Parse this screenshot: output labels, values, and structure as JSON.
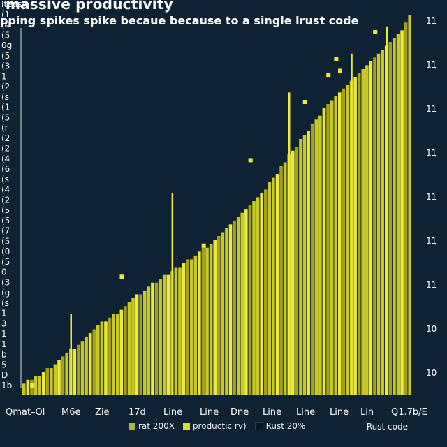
{
  "chart_data": {
    "type": "bar",
    "title": "massive productivity",
    "subtitle": "pping spikes spike becaue because to a single lrust code",
    "x_tick_labels": [
      "Qmat–Ol",
      "M6e",
      "Zie",
      "17d",
      "Line",
      "Line",
      "Dne",
      "Line",
      "Line",
      "Line",
      "Lin",
      "Q1.7b/E"
    ],
    "y_right_labels": [
      "11",
      "11",
      "11",
      "11",
      "11",
      "11",
      "11",
      "10",
      "10"
    ],
    "y_left_labels": [
      "Iteasy",
      "(1",
      "(4",
      "(5",
      "0g",
      "(5",
      "(3",
      "1",
      "(2",
      "(s",
      "(1",
      "(5",
      "(r",
      "(2",
      "(2",
      "(4",
      "(6",
      "(s",
      "(4",
      "(2",
      "(5",
      "(5",
      "(7",
      "(5",
      "(0",
      "(5",
      "0",
      "(3",
      "(g",
      "(s",
      "1",
      "3",
      "1",
      "1",
      "b",
      "5",
      "D",
      "1b"
    ],
    "ylim": [
      0,
      100
    ],
    "values": [
      3,
      4,
      4,
      5,
      5,
      6,
      7,
      7,
      8,
      9,
      10,
      11,
      12,
      12,
      13,
      14,
      15,
      16,
      17,
      18,
      19,
      19,
      20,
      21,
      21,
      22,
      23,
      24,
      25,
      26,
      26,
      27,
      28,
      29,
      29,
      30,
      31,
      31,
      32,
      33,
      33,
      34,
      35,
      35,
      36,
      37,
      38,
      38,
      39,
      40,
      41,
      42,
      43,
      44,
      45,
      46,
      47,
      48,
      49,
      50,
      51,
      52,
      53,
      55,
      56,
      57,
      59,
      60,
      62,
      63,
      64,
      66,
      67,
      68,
      70,
      71,
      72,
      74,
      75,
      76,
      77,
      78,
      79,
      80,
      81,
      82,
      83,
      84,
      85,
      86,
      87,
      88,
      89,
      90,
      91,
      92,
      93,
      94,
      96,
      98
    ],
    "spikes": [
      {
        "index": 12,
        "value": 21
      },
      {
        "index": 38,
        "value": 52
      },
      {
        "index": 68,
        "value": 78
      },
      {
        "index": 84,
        "value": 88
      },
      {
        "index": 93,
        "value": 95
      }
    ],
    "floating_markers": [
      {
        "index": 2,
        "value": 2
      },
      {
        "index": 25,
        "value": 30
      },
      {
        "index": 46,
        "value": 38
      },
      {
        "index": 58,
        "value": 60
      },
      {
        "index": 72,
        "value": 75
      },
      {
        "index": 78,
        "value": 82
      },
      {
        "index": 80,
        "value": 86
      },
      {
        "index": 81,
        "value": 83
      },
      {
        "index": 90,
        "value": 93
      }
    ],
    "legend": [
      {
        "label": "rat 200X",
        "color": "#a8b53a"
      },
      {
        "label": "productic rv)",
        "color": "#d9df2a"
      },
      {
        "label": "Rust 20%",
        "color": "#0a1522"
      }
    ],
    "corner_label": "Rust code",
    "colors": {
      "background": "#0f2233",
      "bar": "#c9c926",
      "bar_highlight": "#ecea3b",
      "bar_dark": "#a59f22",
      "text": "#ffffff"
    }
  }
}
